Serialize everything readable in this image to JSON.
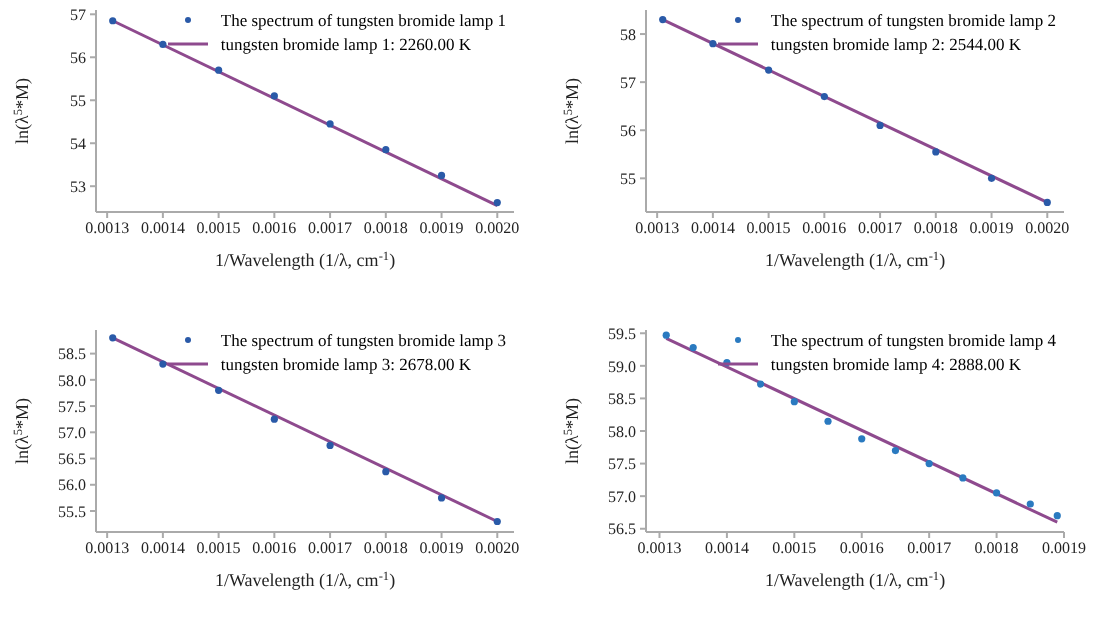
{
  "chart_data": [
    {
      "type": "scatter",
      "xlabel": "1/Wavelength (1/λ, cm$^{-1}$)",
      "ylabel": "ln(λ$^{5}$*M)",
      "xlim": [
        0.00128,
        0.00203
      ],
      "xticks": [
        {
          "value": 0.0013,
          "label": "0.0013"
        },
        {
          "value": 0.0014,
          "label": "0.0014"
        },
        {
          "value": 0.0015,
          "label": "0.0015"
        },
        {
          "value": 0.0016,
          "label": "0.0016"
        },
        {
          "value": 0.0017,
          "label": "0.0017"
        },
        {
          "value": 0.0018,
          "label": "0.0018"
        },
        {
          "value": 0.0019,
          "label": "0.0019"
        },
        {
          "value": 0.002,
          "label": "0.0020"
        }
      ],
      "ylim": [
        52.4,
        57.1
      ],
      "yticks": [
        53,
        54,
        55,
        56,
        57
      ],
      "grid": false,
      "legend": "top right",
      "series": [
        {
          "type": "line",
          "name": "tungsten bromide lamp 1: 2260.00 K",
          "color": "#8e4a8e",
          "marker": "none",
          "line_style": "solid",
          "x": [
            0.00131,
            0.002
          ],
          "values": [
            56.85,
            52.55
          ]
        },
        {
          "name": "The spectrum of tungsten bromide lamp 1",
          "color": "#2a5aa8",
          "marker": "circle",
          "x": [
            0.00131,
            0.0014,
            0.0015,
            0.0016,
            0.0017,
            0.0018,
            0.0019,
            0.002
          ],
          "values": [
            56.85,
            56.3,
            55.7,
            55.1,
            54.45,
            53.85,
            53.25,
            52.62
          ]
        }
      ]
    },
    {
      "type": "scatter",
      "xlabel": "1/Wavelength (1/λ, cm$^{-1}$)",
      "ylabel": "ln(λ$^{5}$*M)",
      "xlim": [
        0.00128,
        0.00203
      ],
      "xticks": [
        {
          "value": 0.0013,
          "label": "0.0013"
        },
        {
          "value": 0.0014,
          "label": "0.0014"
        },
        {
          "value": 0.0015,
          "label": "0.0015"
        },
        {
          "value": 0.0016,
          "label": "0.0016"
        },
        {
          "value": 0.0017,
          "label": "0.0017"
        },
        {
          "value": 0.0018,
          "label": "0.0018"
        },
        {
          "value": 0.0019,
          "label": "0.0019"
        },
        {
          "value": 0.002,
          "label": "0.0020"
        }
      ],
      "ylim": [
        54.3,
        58.5
      ],
      "yticks": [
        55,
        56,
        57,
        58
      ],
      "grid": false,
      "legend": "top right",
      "series": [
        {
          "type": "line",
          "name": "tungsten bromide lamp 2: 2544.00 K",
          "color": "#8e4a8e",
          "marker": "none",
          "line_style": "solid",
          "x": [
            0.00131,
            0.002
          ],
          "values": [
            58.3,
            54.5
          ]
        },
        {
          "name": "The spectrum of tungsten bromide lamp 2",
          "color": "#2a5aa8",
          "marker": "circle",
          "x": [
            0.00131,
            0.0014,
            0.0015,
            0.0016,
            0.0017,
            0.0018,
            0.0019,
            0.002
          ],
          "values": [
            58.3,
            57.8,
            57.25,
            56.7,
            56.1,
            55.55,
            55.0,
            54.5
          ]
        }
      ]
    },
    {
      "type": "scatter",
      "xlabel": "1/Wavelength (1/λ, cm$^{-1}$)",
      "ylabel": "ln(λ$^{5}$*M)",
      "xlim": [
        0.00128,
        0.00203
      ],
      "xticks": [
        {
          "value": 0.0013,
          "label": "0.0013"
        },
        {
          "value": 0.0014,
          "label": "0.0014"
        },
        {
          "value": 0.0015,
          "label": "0.0015"
        },
        {
          "value": 0.0016,
          "label": "0.0016"
        },
        {
          "value": 0.0017,
          "label": "0.0017"
        },
        {
          "value": 0.0018,
          "label": "0.0018"
        },
        {
          "value": 0.0019,
          "label": "0.0019"
        },
        {
          "value": 0.002,
          "label": "0.0020"
        }
      ],
      "ylim": [
        55.1,
        58.95
      ],
      "yticks": [
        {
          "value": 55.5,
          "label": "55.5"
        },
        {
          "value": 56,
          "label": "56.0"
        },
        {
          "value": 56.5,
          "label": "56.5"
        },
        {
          "value": 57,
          "label": "57.0"
        },
        {
          "value": 57.5,
          "label": "57.5"
        },
        {
          "value": 58,
          "label": "58.0"
        },
        {
          "value": 58.5,
          "label": "58.5"
        }
      ],
      "grid": false,
      "legend": "top right",
      "series": [
        {
          "type": "line",
          "name": "tungsten bromide lamp 3: 2678.00 K",
          "color": "#8e4a8e",
          "marker": "none",
          "line_style": "solid",
          "x": [
            0.00131,
            0.002
          ],
          "values": [
            58.8,
            55.3
          ]
        },
        {
          "name": "The spectrum of tungsten bromide lamp 3",
          "color": "#2a5aa8",
          "marker": "circle",
          "x": [
            0.00131,
            0.0014,
            0.0015,
            0.0016,
            0.0017,
            0.0018,
            0.0019,
            0.002
          ],
          "values": [
            58.8,
            58.3,
            57.8,
            57.25,
            56.75,
            56.25,
            55.75,
            55.3
          ]
        }
      ]
    },
    {
      "type": "scatter",
      "xlabel": "1/Wavelength (1/λ, cm$^{-1}$)",
      "ylabel": "ln(λ$^{5}$*M)",
      "xlim": [
        0.00128,
        0.0019
      ],
      "xticks": [
        {
          "value": 0.0013,
          "label": "0.0013"
        },
        {
          "value": 0.0014,
          "label": "0.0014"
        },
        {
          "value": 0.0015,
          "label": "0.0015"
        },
        {
          "value": 0.0016,
          "label": "0.0016"
        },
        {
          "value": 0.0017,
          "label": "0.0017"
        },
        {
          "value": 0.0018,
          "label": "0.0018"
        },
        {
          "value": 0.0019,
          "label": "0.0019"
        }
      ],
      "ylim": [
        56.45,
        59.55
      ],
      "yticks": [
        {
          "value": 56.5,
          "label": "56.5"
        },
        {
          "value": 57,
          "label": "57.0"
        },
        {
          "value": 57.5,
          "label": "57.5"
        },
        {
          "value": 58,
          "label": "58.0"
        },
        {
          "value": 58.5,
          "label": "58.5"
        },
        {
          "value": 59,
          "label": "59.0"
        },
        {
          "value": 59.5,
          "label": "59.5"
        }
      ],
      "grid": false,
      "legend": "top right",
      "series": [
        {
          "type": "line",
          "name": "tungsten bromide lamp 4: 2888.00 K",
          "color": "#8e4a8e",
          "marker": "none",
          "line_style": "solid",
          "x": [
            0.00131,
            0.00189
          ],
          "values": [
            59.42,
            56.6
          ]
        },
        {
          "name": "The spectrum of tungsten bromide lamp 4",
          "color": "#2a7ac0",
          "marker": "circle",
          "x": [
            0.00131,
            0.00135,
            0.0014,
            0.00145,
            0.0015,
            0.00155,
            0.0016,
            0.00165,
            0.0017,
            0.00175,
            0.0018,
            0.00185,
            0.00189
          ],
          "values": [
            59.47,
            59.28,
            59.05,
            58.72,
            58.45,
            58.15,
            57.88,
            57.7,
            57.5,
            57.28,
            57.05,
            56.88,
            56.7
          ]
        }
      ]
    }
  ]
}
